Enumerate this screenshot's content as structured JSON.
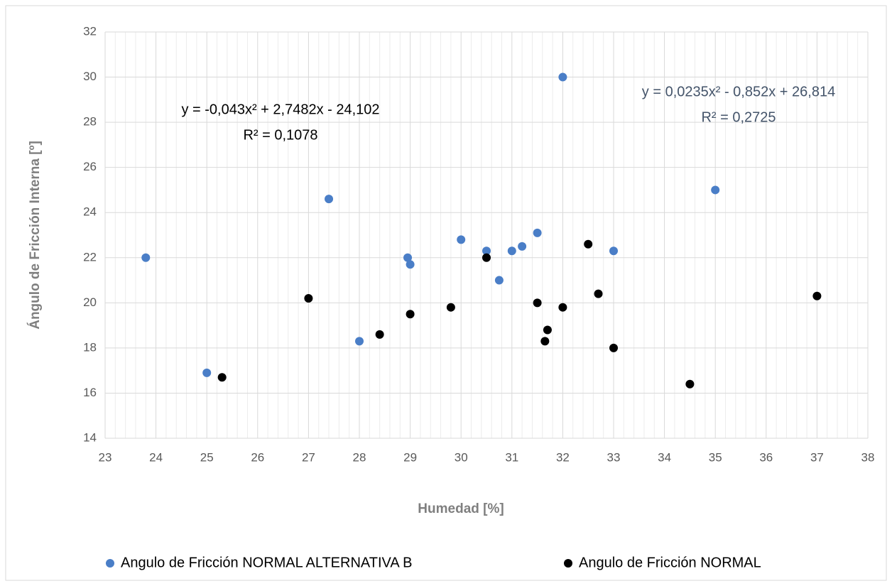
{
  "chart_data": {
    "type": "scatter",
    "x_label": "Humedad [%]",
    "y_label": "Ángulo de Fricción Interna [º]",
    "xlim": [
      23,
      38
    ],
    "xticks": [
      23,
      24,
      25,
      26,
      27,
      28,
      29,
      30,
      31,
      32,
      33,
      34,
      35,
      36,
      37,
      38
    ],
    "ylim": [
      14,
      32
    ],
    "yticks": [
      14,
      16,
      18,
      20,
      22,
      24,
      26,
      28,
      30,
      32
    ],
    "grid": true,
    "legend": "bottom",
    "series": [
      {
        "name": "Angulo de Fricción NORMAL ALTERNATIVA B",
        "color": "#4a7ec7",
        "x": [
          23.8,
          25,
          27.4,
          28,
          28.95,
          29,
          30,
          30.5,
          30.75,
          31,
          31.2,
          31.5,
          32,
          33,
          35
        ],
        "values": [
          22,
          16.9,
          24.6,
          18.3,
          22,
          21.7,
          22.8,
          22.3,
          21,
          22.3,
          22.5,
          23.1,
          30,
          22.3,
          25
        ],
        "trendline": {
          "type": "polynomial",
          "order": 2,
          "color": "#4a7ec7",
          "label_color": "#44546a",
          "equation": "y = 0,0235x² - 0,852x + 26,814",
          "r2": "R² = 0,2725"
        }
      },
      {
        "name": "Angulo de Fricción NORMAL",
        "color": "#000000",
        "x": [
          25.3,
          27,
          28.4,
          29,
          29.8,
          30.5,
          31.5,
          31.65,
          31.7,
          32,
          32.5,
          32.7,
          33,
          34.5,
          37
        ],
        "values": [
          16.7,
          20.2,
          18.6,
          19.5,
          19.8,
          22,
          20,
          18.3,
          18.8,
          19.8,
          22.6,
          20.4,
          18,
          16.4,
          20.3
        ],
        "trendline": {
          "type": "polynomial",
          "order": 2,
          "color": "#000000",
          "label_color": "#000000",
          "equation": "y = -0,043x² + 2,7482x - 24,102",
          "r2": "R² = 0,1078"
        }
      }
    ]
  }
}
